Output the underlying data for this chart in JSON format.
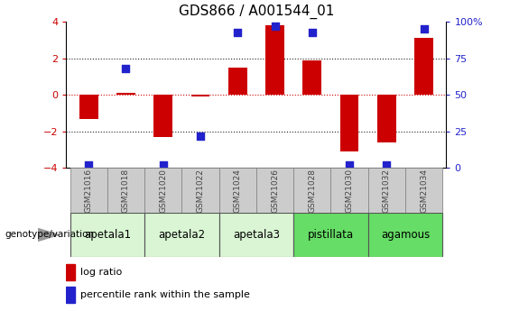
{
  "title": "GDS866 / A001544_01",
  "samples": [
    "GSM21016",
    "GSM21018",
    "GSM21020",
    "GSM21022",
    "GSM21024",
    "GSM21026",
    "GSM21028",
    "GSM21030",
    "GSM21032",
    "GSM21034"
  ],
  "log_ratio": [
    -1.3,
    0.1,
    -2.3,
    -0.1,
    1.5,
    3.8,
    1.9,
    -3.1,
    -2.6,
    3.1
  ],
  "percentile_rank": [
    2,
    68,
    2,
    22,
    93,
    97,
    93,
    2,
    2,
    95
  ],
  "groups": [
    {
      "label": "apetala1",
      "samples": [
        "GSM21016",
        "GSM21018"
      ],
      "color": "#d9f5d3"
    },
    {
      "label": "apetala2",
      "samples": [
        "GSM21020",
        "GSM21022"
      ],
      "color": "#d9f5d3"
    },
    {
      "label": "apetala3",
      "samples": [
        "GSM21024",
        "GSM21026"
      ],
      "color": "#d9f5d3"
    },
    {
      "label": "pistillata",
      "samples": [
        "GSM21028",
        "GSM21030"
      ],
      "color": "#66dd66"
    },
    {
      "label": "agamous",
      "samples": [
        "GSM21032",
        "GSM21034"
      ],
      "color": "#66dd66"
    }
  ],
  "ylim": [
    -4,
    4
  ],
  "y2lim": [
    0,
    100
  ],
  "bar_color": "#cc0000",
  "dot_color": "#2222cc",
  "bar_width": 0.5,
  "dot_size": 35,
  "hline_zero_color": "#cc0000",
  "hline_dotted_color": "#222222",
  "sample_box_color": "#cccccc",
  "sample_text_color": "#444444",
  "left_tick_color": "#cc0000",
  "right_tick_color": "#2222cc",
  "legend_bar_color": "#cc0000",
  "legend_dot_color": "#2222cc",
  "genotype_label": "genotype/variation",
  "title_fontsize": 11,
  "tick_fontsize": 8,
  "sample_fontsize": 6.5,
  "group_fontsize": 8.5,
  "legend_fontsize": 8
}
